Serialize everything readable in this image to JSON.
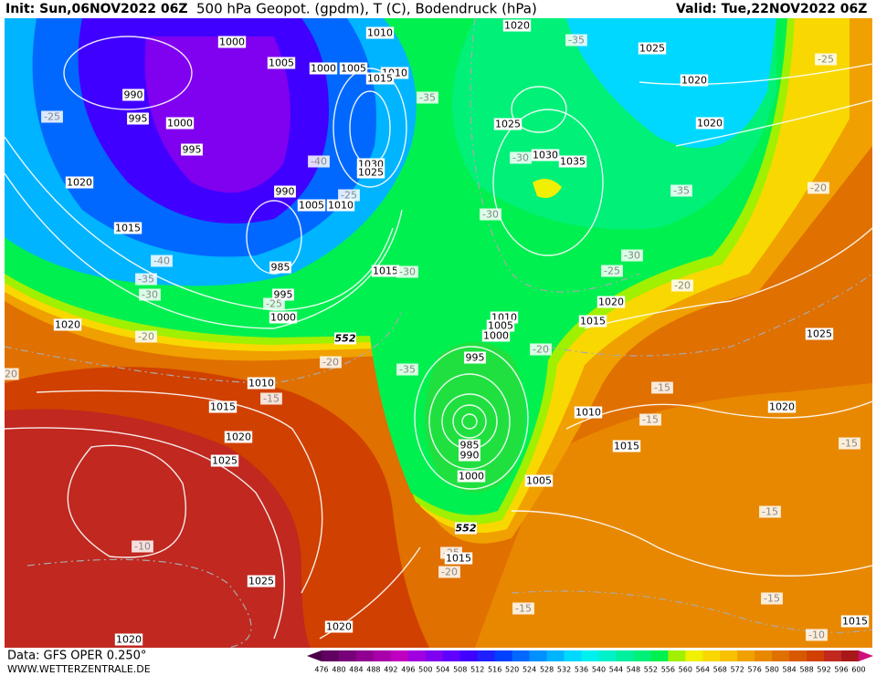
{
  "header": {
    "init": "Init: Sun,06NOV2022 06Z",
    "title": "500 hPa Geopot. (gpdm), T (C), Bodendruck (hPa)",
    "valid": "Valid: Tue,22NOV2022 06Z"
  },
  "map_labels": [
    1000,
    1010,
    1020,
    -35,
    1025,
    -25,
    1005,
    1000,
    1005,
    1010,
    1015,
    1020,
    990,
    -35,
    -25,
    995,
    1000,
    1025,
    1020,
    995,
    -30,
    1030,
    1035,
    -40,
    1030,
    1025,
    1020,
    990,
    -35,
    -20,
    -25,
    1005,
    1010,
    -30,
    1015,
    -30,
    -40,
    985,
    1015,
    -30,
    -25,
    -35,
    -20,
    -30,
    995,
    -25,
    1020,
    1000,
    1010,
    1005,
    1015,
    1020,
    1000,
    1025,
    -20,
    552,
    -20,
    -20,
    995,
    -15,
    -15,
    -35,
    20,
    1010,
    -15,
    1015,
    1020,
    1010,
    1020,
    1015,
    -15,
    985,
    990,
    1025,
    1000,
    1005,
    -15,
    552,
    -10,
    -25,
    1015,
    -20,
    1025,
    -15,
    -15,
    1020,
    -10,
    1015,
    1020
  ],
  "legend": {
    "levels": [
      476,
      480,
      484,
      488,
      492,
      496,
      500,
      504,
      508,
      512,
      516,
      520,
      524,
      528,
      532,
      536,
      540,
      544,
      548,
      552,
      556,
      560,
      564,
      568,
      572,
      576,
      580,
      584,
      588,
      592,
      596,
      600
    ],
    "colors": [
      "#4b0048",
      "#600060",
      "#780078",
      "#900090",
      "#a800a8",
      "#c000c0",
      "#a000e0",
      "#8000f0",
      "#6000ff",
      "#4000ff",
      "#2020ff",
      "#0040ff",
      "#0068ff",
      "#0090ff",
      "#00b4ff",
      "#00d8ff",
      "#00f0f0",
      "#00f0c8",
      "#00f0a0",
      "#00f078",
      "#00f050",
      "#a0f000",
      "#f0f000",
      "#f8d800",
      "#f8c000",
      "#f0a000",
      "#e88800",
      "#e07000",
      "#d85800",
      "#d04000",
      "#c02820",
      "#a81818",
      "#d0107a"
    ]
  },
  "footer": {
    "source": "Data: GFS OPER 0.250°",
    "website": "WWW.WETTERZENTRALE.DE"
  }
}
